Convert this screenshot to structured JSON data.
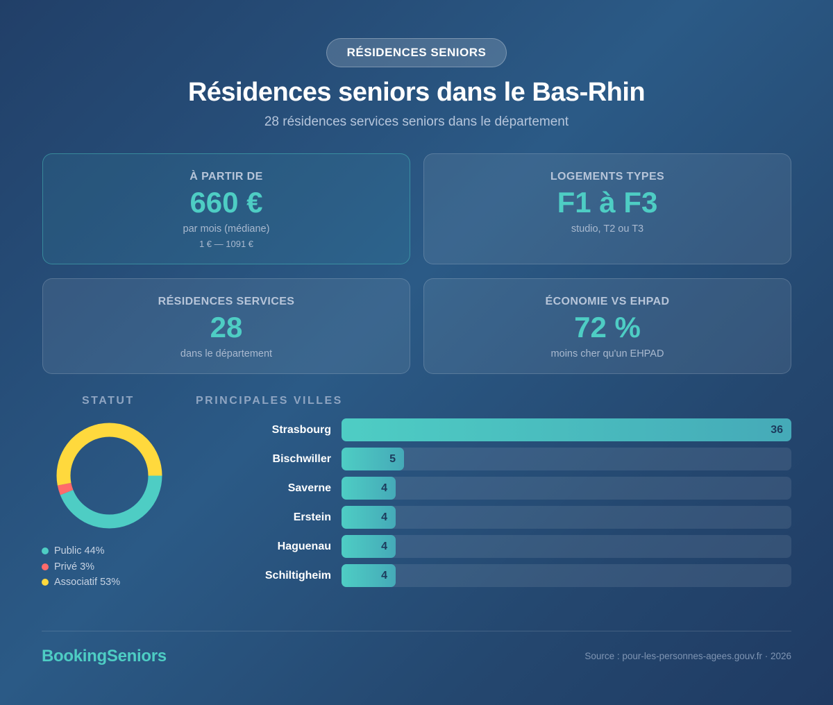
{
  "header": {
    "badge": "RÉSIDENCES SENIORS",
    "title": "Résidences seniors dans le Bas-Rhin",
    "subtitle": "28 résidences services seniors dans le département"
  },
  "cards": [
    {
      "label": "À PARTIR DE",
      "value": "660 €",
      "note": "par mois (médiane)",
      "range": "1 € — 1091 €"
    },
    {
      "label": "LOGEMENTS TYPES",
      "value": "F1 à F3",
      "note": "studio, T2 ou T3"
    },
    {
      "label": "RÉSIDENCES SERVICES",
      "value": "28",
      "note": "dans le département"
    },
    {
      "label": "ÉCONOMIE VS EHPAD",
      "value": "72 %",
      "note": "moins cher qu'un EHPAD"
    }
  ],
  "statut": {
    "title": "STATUT",
    "legend": [
      {
        "label": "Public 44%",
        "color": "#4ecdc4"
      },
      {
        "label": "Privé 3%",
        "color": "#ff6b6b"
      },
      {
        "label": "Associatif 53%",
        "color": "#ffd93d"
      }
    ]
  },
  "villes": {
    "title": "PRINCIPALES VILLES",
    "rows": [
      {
        "city": "Strasbourg",
        "value": "36"
      },
      {
        "city": "Bischwiller",
        "value": "5"
      },
      {
        "city": "Saverne",
        "value": "4"
      },
      {
        "city": "Erstein",
        "value": "4"
      },
      {
        "city": "Haguenau",
        "value": "4"
      },
      {
        "city": "Schiltigheim",
        "value": "4"
      }
    ]
  },
  "footer": {
    "brand": "BookingSeniors",
    "source": "Source : pour-les-personnes-agees.gouv.fr · 2026"
  },
  "chart_data": [
    {
      "type": "pie",
      "title": "STATUT",
      "categories": [
        "Public",
        "Privé",
        "Associatif"
      ],
      "values": [
        44,
        3,
        53
      ],
      "colors": [
        "#4ecdc4",
        "#ff6b6b",
        "#ffd93d"
      ],
      "donut": true,
      "legend_position": "bottom"
    },
    {
      "type": "bar",
      "orientation": "horizontal",
      "title": "PRINCIPALES VILLES",
      "categories": [
        "Strasbourg",
        "Bischwiller",
        "Saverne",
        "Erstein",
        "Haguenau",
        "Schiltigheim"
      ],
      "values": [
        36,
        5,
        4,
        4,
        4,
        4
      ],
      "xlabel": "",
      "ylabel": "",
      "grid": false
    }
  ]
}
